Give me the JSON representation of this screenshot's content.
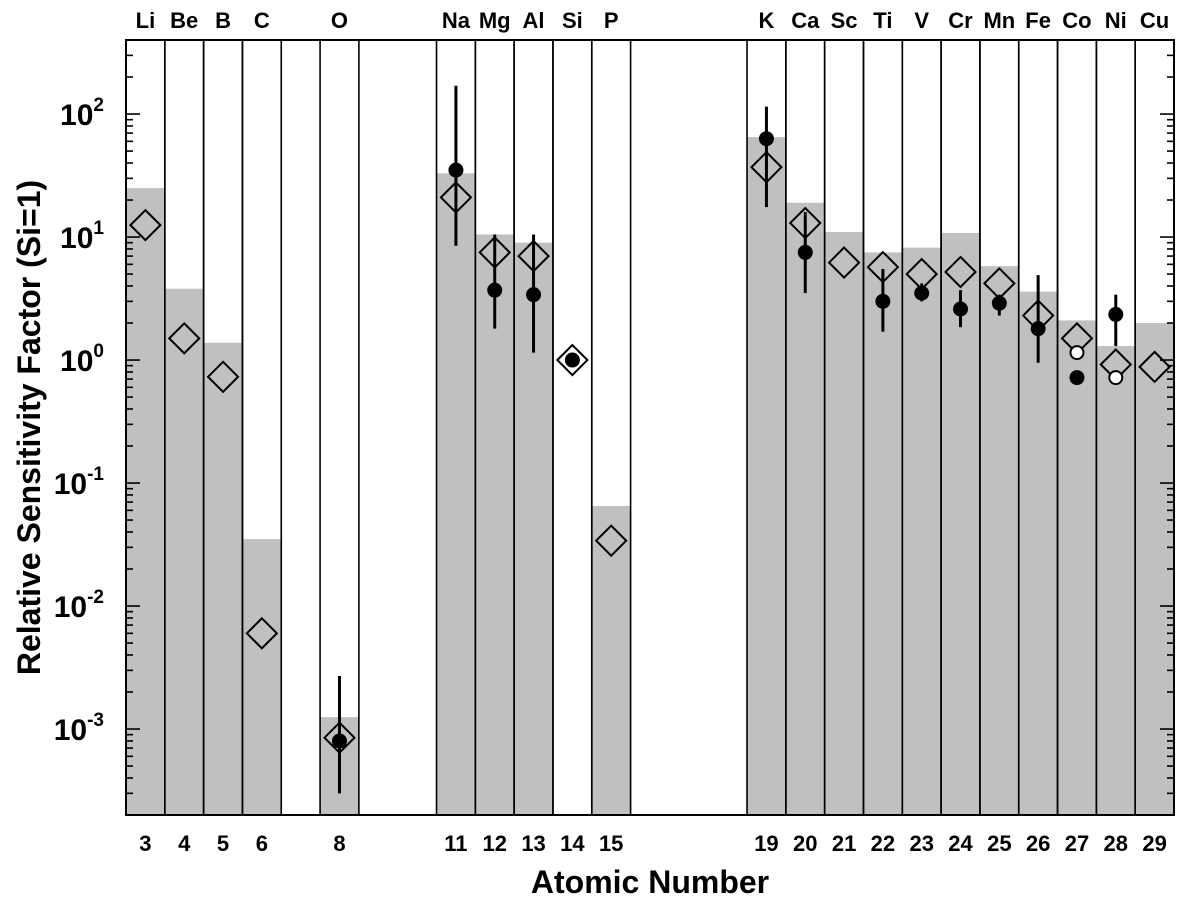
{
  "chart_data": {
    "type": "bar",
    "xlabel": "Atomic Number",
    "ylabel": "Relative Sensitivity Factor (Si=1)",
    "yscale": "log",
    "ylim": [
      0.0002,
      400
    ],
    "yticks": [
      {
        "value": 0.001,
        "base": "10",
        "exp": "-3"
      },
      {
        "value": 0.01,
        "base": "10",
        "exp": "-2"
      },
      {
        "value": 0.1,
        "base": "10",
        "exp": "-1"
      },
      {
        "value": 1,
        "base": "10",
        "exp": "0"
      },
      {
        "value": 10,
        "base": "10",
        "exp": "1"
      },
      {
        "value": 100,
        "base": "10",
        "exp": "2"
      }
    ],
    "xlim": [
      2.5,
      29.5
    ],
    "bar_color": "#c0c0c0",
    "marker_color": "#000000",
    "elements": [
      {
        "z": 3,
        "symbol": "Li",
        "bar": 25
      },
      {
        "z": 4,
        "symbol": "Be",
        "bar": 3.8
      },
      {
        "z": 5,
        "symbol": "B",
        "bar": 1.38
      },
      {
        "z": 6,
        "symbol": "C",
        "bar": 0.035
      },
      {
        "z": 8,
        "symbol": "O",
        "bar": 0.00125
      },
      {
        "z": 11,
        "symbol": "Na",
        "bar": 33
      },
      {
        "z": 12,
        "symbol": "Mg",
        "bar": 10.5
      },
      {
        "z": 13,
        "symbol": "Al",
        "bar": 9
      },
      {
        "z": 14,
        "symbol": "Si",
        "bar": null
      },
      {
        "z": 15,
        "symbol": "P",
        "bar": 0.065
      },
      {
        "z": 19,
        "symbol": "K",
        "bar": 65
      },
      {
        "z": 20,
        "symbol": "Ca",
        "bar": 19
      },
      {
        "z": 21,
        "symbol": "Sc",
        "bar": 11
      },
      {
        "z": 22,
        "symbol": "Ti",
        "bar": 7.5
      },
      {
        "z": 23,
        "symbol": "V",
        "bar": 8.2
      },
      {
        "z": 24,
        "symbol": "Cr",
        "bar": 10.8
      },
      {
        "z": 25,
        "symbol": "Mn",
        "bar": 5.8
      },
      {
        "z": 26,
        "symbol": "Fe",
        "bar": 3.6
      },
      {
        "z": 27,
        "symbol": "Co",
        "bar": 2.1
      },
      {
        "z": 28,
        "symbol": "Ni",
        "bar": 1.3
      },
      {
        "z": 29,
        "symbol": "Cu",
        "bar": 2.0
      }
    ],
    "diamonds": [
      {
        "z": 3,
        "y": 12.5
      },
      {
        "z": 4,
        "y": 1.5
      },
      {
        "z": 5,
        "y": 0.73
      },
      {
        "z": 6,
        "y": 0.006
      },
      {
        "z": 8,
        "y": 0.00085
      },
      {
        "z": 11,
        "y": 21
      },
      {
        "z": 12,
        "y": 7.5
      },
      {
        "z": 13,
        "y": 7
      },
      {
        "z": 14,
        "y": 1.0
      },
      {
        "z": 15,
        "y": 0.034
      },
      {
        "z": 19,
        "y": 37
      },
      {
        "z": 20,
        "y": 13
      },
      {
        "z": 21,
        "y": 6.2
      },
      {
        "z": 22,
        "y": 5.7
      },
      {
        "z": 23,
        "y": 5.0
      },
      {
        "z": 24,
        "y": 5.2
      },
      {
        "z": 25,
        "y": 4.2
      },
      {
        "z": 26,
        "y": 2.3
      },
      {
        "z": 27,
        "y": 1.5
      },
      {
        "z": 28,
        "y": 0.92
      },
      {
        "z": 29,
        "y": 0.88
      }
    ],
    "filled_circles": [
      {
        "z": 8,
        "y": 0.0008,
        "err_low": 0.0003,
        "err_high": 0.0027
      },
      {
        "z": 11,
        "y": 35,
        "err_low": 8.5,
        "err_high": 170
      },
      {
        "z": 12,
        "y": 3.7,
        "err_low": 1.8,
        "err_high": 10.5
      },
      {
        "z": 13,
        "y": 3.4,
        "err_low": 1.15,
        "err_high": 10.5
      },
      {
        "z": 14,
        "y": 1.0,
        "err_low": null,
        "err_high": null
      },
      {
        "z": 19,
        "y": 63,
        "err_low": 17.5,
        "err_high": 115
      },
      {
        "z": 20,
        "y": 7.5,
        "err_low": 3.5,
        "err_high": 16
      },
      {
        "z": 22,
        "y": 3.0,
        "err_low": 1.7,
        "err_high": 5.5
      },
      {
        "z": 23,
        "y": 3.5,
        "err_low": 3.0,
        "err_high": 4.2
      },
      {
        "z": 24,
        "y": 2.6,
        "err_low": 1.85,
        "err_high": 3.7
      },
      {
        "z": 25,
        "y": 2.9,
        "err_low": 2.3,
        "err_high": 3.4
      },
      {
        "z": 26,
        "y": 1.8,
        "err_low": 0.95,
        "err_high": 4.9
      },
      {
        "z": 27,
        "y": 0.72,
        "err_low": null,
        "err_high": null
      },
      {
        "z": 28,
        "y": 2.35,
        "err_low": 1.3,
        "err_high": 3.4
      }
    ],
    "open_circles": [
      {
        "z": 27,
        "y": 1.15
      },
      {
        "z": 28,
        "y": 0.72
      }
    ]
  }
}
